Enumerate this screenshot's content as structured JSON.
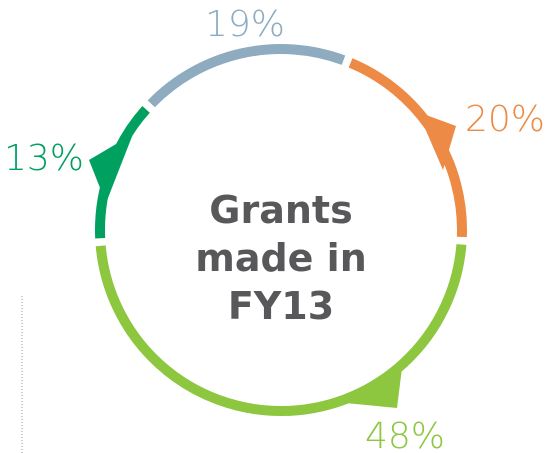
{
  "chart_data": {
    "type": "donut",
    "title": "Grants made in FY13",
    "values": [
      19,
      20,
      48,
      13
    ],
    "value_labels": [
      "19%",
      "20%",
      "48%",
      "13%"
    ],
    "colors": [
      "#8eabc0",
      "#ec8a46",
      "#8dc63f",
      "#00a060"
    ]
  }
}
